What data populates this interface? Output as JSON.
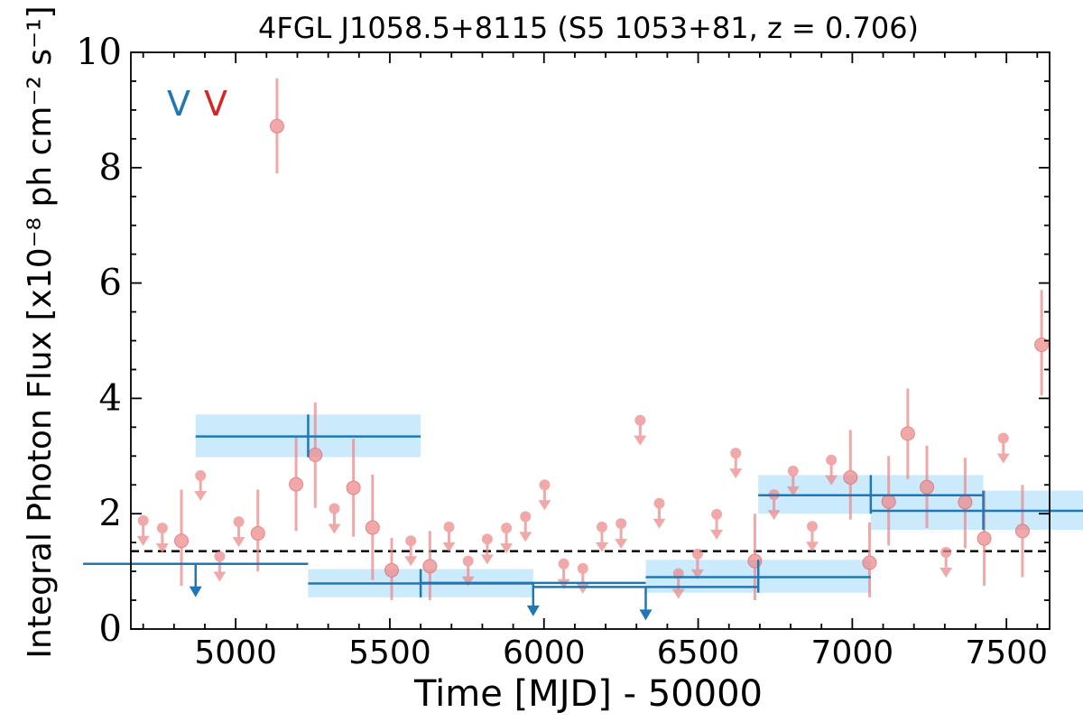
{
  "chart_data": {
    "type": "scatter",
    "title": "4FGL J1058.5+8115 (S5 1053+81, z = 0.706)",
    "xlabel": "Time [MJD] - 50000",
    "ylabel": "Integral Photon Flux [x10⁻⁸ ph cm⁻² s⁻¹]",
    "xlim": [
      4660,
      7640
    ],
    "ylim": [
      0,
      10
    ],
    "xticks": [
      5000,
      5500,
      6000,
      6500,
      7000,
      7500
    ],
    "yticks": [
      0,
      2,
      4,
      6,
      8,
      10
    ],
    "mean_flux": 1.35,
    "legend_labels": [
      {
        "text": "V",
        "color": "#1f77b4"
      },
      {
        "text": "V",
        "color": "#d62728"
      }
    ],
    "colors": {
      "fine": "#ec8b8d",
      "coarse": "#1f77b4",
      "band": "#cbeafb",
      "mean_line": "#000000"
    },
    "fine_bin_points": [
      {
        "x": 4700,
        "y": 1.88,
        "ul": true
      },
      {
        "x": 4762,
        "y": 1.75,
        "ul": true
      },
      {
        "x": 4824,
        "y": 1.53,
        "lo": 0.75,
        "hi": 2.42
      },
      {
        "x": 4886,
        "y": 2.66,
        "ul": true
      },
      {
        "x": 4948,
        "y": 1.26,
        "ul": true
      },
      {
        "x": 5010,
        "y": 1.86,
        "ul": true
      },
      {
        "x": 5072,
        "y": 1.66,
        "lo": 1.0,
        "hi": 2.42
      },
      {
        "x": 5134,
        "y": 8.72,
        "lo": 7.9,
        "hi": 9.55
      },
      {
        "x": 5196,
        "y": 2.51,
        "lo": 1.7,
        "hi": 3.32
      },
      {
        "x": 5258,
        "y": 3.02,
        "lo": 2.1,
        "hi": 3.93
      },
      {
        "x": 5320,
        "y": 2.09,
        "ul": true
      },
      {
        "x": 5382,
        "y": 2.45,
        "lo": 1.6,
        "hi": 3.3
      },
      {
        "x": 5444,
        "y": 1.76,
        "lo": 0.85,
        "hi": 2.68
      },
      {
        "x": 5506,
        "y": 1.02,
        "lo": 0.5,
        "hi": 1.58
      },
      {
        "x": 5568,
        "y": 1.53,
        "ul": true
      },
      {
        "x": 5630,
        "y": 1.09,
        "lo": 0.5,
        "hi": 1.7
      },
      {
        "x": 5692,
        "y": 1.77,
        "ul": true
      },
      {
        "x": 5754,
        "y": 1.18,
        "ul": true
      },
      {
        "x": 5816,
        "y": 1.56,
        "ul": true
      },
      {
        "x": 5878,
        "y": 1.75,
        "ul": true
      },
      {
        "x": 5940,
        "y": 1.95,
        "ul": true
      },
      {
        "x": 6002,
        "y": 2.5,
        "ul": true
      },
      {
        "x": 6064,
        "y": 1.13,
        "ul": true
      },
      {
        "x": 6126,
        "y": 1.05,
        "ul": true
      },
      {
        "x": 6188,
        "y": 1.77,
        "ul": true
      },
      {
        "x": 6250,
        "y": 1.83,
        "ul": true
      },
      {
        "x": 6312,
        "y": 3.62,
        "ul": true
      },
      {
        "x": 6374,
        "y": 2.18,
        "ul": true
      },
      {
        "x": 6436,
        "y": 0.96,
        "ul": true
      },
      {
        "x": 6498,
        "y": 1.3,
        "ul": true
      },
      {
        "x": 6560,
        "y": 1.99,
        "ul": true
      },
      {
        "x": 6622,
        "y": 3.05,
        "ul": true
      },
      {
        "x": 6684,
        "y": 1.18,
        "lo": 0.5,
        "hi": 2.0
      },
      {
        "x": 6746,
        "y": 2.33,
        "ul": true
      },
      {
        "x": 6808,
        "y": 2.74,
        "ul": true
      },
      {
        "x": 6870,
        "y": 1.78,
        "ul": true
      },
      {
        "x": 6932,
        "y": 2.93,
        "ul": true
      },
      {
        "x": 6994,
        "y": 2.63,
        "lo": 1.9,
        "hi": 3.45
      },
      {
        "x": 7056,
        "y": 1.15,
        "lo": 0.55,
        "hi": 1.85
      },
      {
        "x": 7118,
        "y": 2.21,
        "lo": 1.45,
        "hi": 3.0
      },
      {
        "x": 7180,
        "y": 3.39,
        "lo": 2.6,
        "hi": 4.17
      },
      {
        "x": 7242,
        "y": 2.46,
        "lo": 1.75,
        "hi": 3.18
      },
      {
        "x": 7304,
        "y": 1.33,
        "ul": true
      },
      {
        "x": 7366,
        "y": 2.2,
        "lo": 1.4,
        "hi": 2.97
      },
      {
        "x": 7428,
        "y": 1.57,
        "lo": 0.75,
        "hi": 2.4
      },
      {
        "x": 7490,
        "y": 3.31,
        "ul": true
      },
      {
        "x": 7552,
        "y": 1.7,
        "lo": 0.9,
        "hi": 2.5
      },
      {
        "x": 7614,
        "y": 4.93,
        "lo": 4.05,
        "hi": 5.88
      }
    ],
    "coarse_bin_points": [
      {
        "x": 4870,
        "xerr": 365,
        "y": 1.13,
        "ul": true
      },
      {
        "x": 5235,
        "xerr": 365,
        "y": 3.34,
        "lo": 2.98,
        "hi": 3.72
      },
      {
        "x": 5600,
        "xerr": 365,
        "y": 0.79,
        "lo": 0.55,
        "hi": 1.04
      },
      {
        "x": 5965,
        "xerr": 365,
        "y": 0.8,
        "ul": true
      },
      {
        "x": 6330,
        "xerr": 365,
        "y": 0.73,
        "ul": true
      },
      {
        "x": 6695,
        "xerr": 365,
        "y": 0.9,
        "lo": 0.63,
        "hi": 1.2
      },
      {
        "x": 7060,
        "xerr": 365,
        "y": 2.32,
        "lo": 2.0,
        "hi": 2.67
      },
      {
        "x": 7425,
        "xerr": 365,
        "y": 2.05,
        "lo": 1.72,
        "hi": 2.4
      }
    ]
  }
}
